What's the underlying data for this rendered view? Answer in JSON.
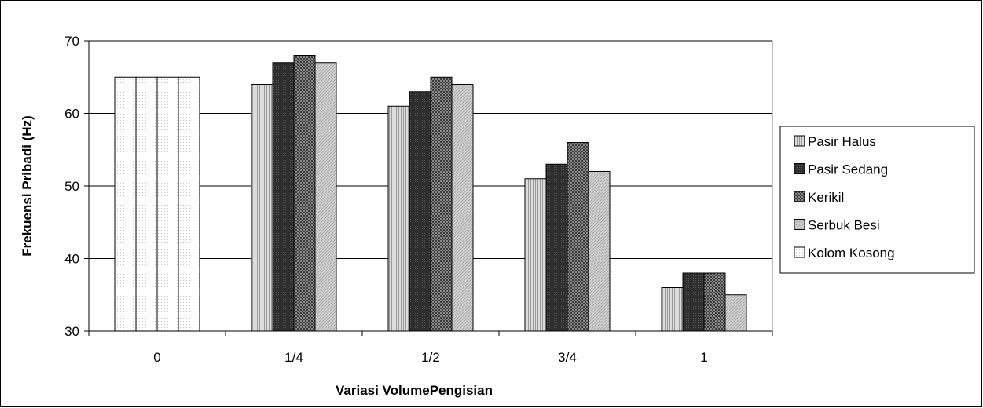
{
  "chart_data": {
    "type": "bar",
    "title": "",
    "xlabel": "Variasi VolumePengisian",
    "ylabel": "Frekuensi Pribadi (Hz)",
    "ylim": [
      30,
      70
    ],
    "yticks": [
      30,
      40,
      50,
      60,
      70
    ],
    "categories": [
      "0",
      "1/4",
      "1/2",
      "3/4",
      "1"
    ],
    "grid": true,
    "legend_position": "right",
    "series": [
      {
        "name": "Pasir Halus",
        "pattern": "light-vertical-lines",
        "color": "#c8c8c8",
        "values": [
          null,
          64,
          61,
          51,
          36
        ]
      },
      {
        "name": "Pasir Sedang",
        "pattern": "dark-solid",
        "color": "#333333",
        "values": [
          null,
          67,
          63,
          53,
          38
        ]
      },
      {
        "name": "Kerikil",
        "pattern": "dark-checker",
        "color": "#666666",
        "values": [
          null,
          68,
          65,
          56,
          38
        ]
      },
      {
        "name": "Serbuk Besi",
        "pattern": "light-diagonal",
        "color": "#c0c0c0",
        "values": [
          null,
          67,
          64,
          52,
          35
        ]
      },
      {
        "name": "Kolom Kosong",
        "pattern": "white-dotted",
        "color": "#ffffff",
        "values": [
          65,
          null,
          null,
          null,
          null
        ]
      }
    ],
    "empty_category_values": [
      65,
      65,
      65,
      65
    ]
  }
}
